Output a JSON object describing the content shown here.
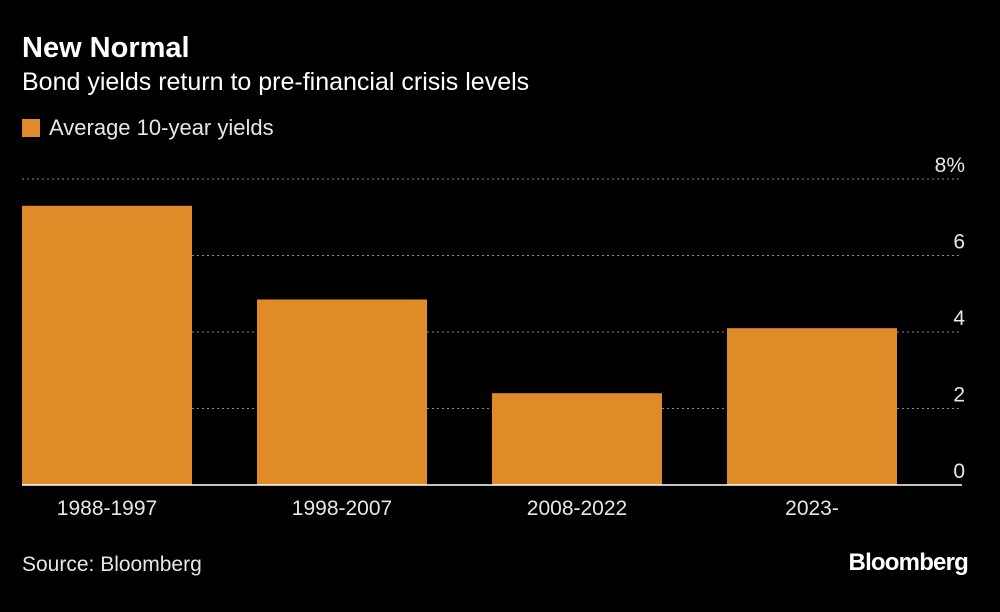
{
  "title": "New Normal",
  "subtitle": "Bond yields return to pre-financial crisis levels",
  "legend": {
    "label": "Average 10-year yields",
    "icon": "orange-square-swatch"
  },
  "source": "Source: Bloomberg",
  "logo": "Bloomberg",
  "colors": {
    "background": "#000000",
    "bar": "#de8b28",
    "grid": "#8a8a8a",
    "baseline": "#ffffff",
    "text": "#ffffff",
    "muted_text": "#e6e6e6"
  },
  "chart_data": {
    "type": "bar",
    "title": "New Normal",
    "subtitle": "Bond yields return to pre-financial crisis levels",
    "categories": [
      "1988-1997",
      "1998-2007",
      "2008-2022",
      "2023-"
    ],
    "series": [
      {
        "name": "Average 10-year yields",
        "values": [
          7.3,
          4.85,
          2.4,
          4.1
        ]
      }
    ],
    "ylim": [
      0,
      8
    ],
    "yticks": [
      0,
      2,
      4,
      6,
      8
    ],
    "ytick_labels": [
      "0",
      "2",
      "4",
      "6",
      "8%"
    ],
    "y_axis_side": "right",
    "grid": true,
    "grid_style": "dotted",
    "xlabel": "",
    "ylabel": "",
    "legend_position": "top-left"
  }
}
